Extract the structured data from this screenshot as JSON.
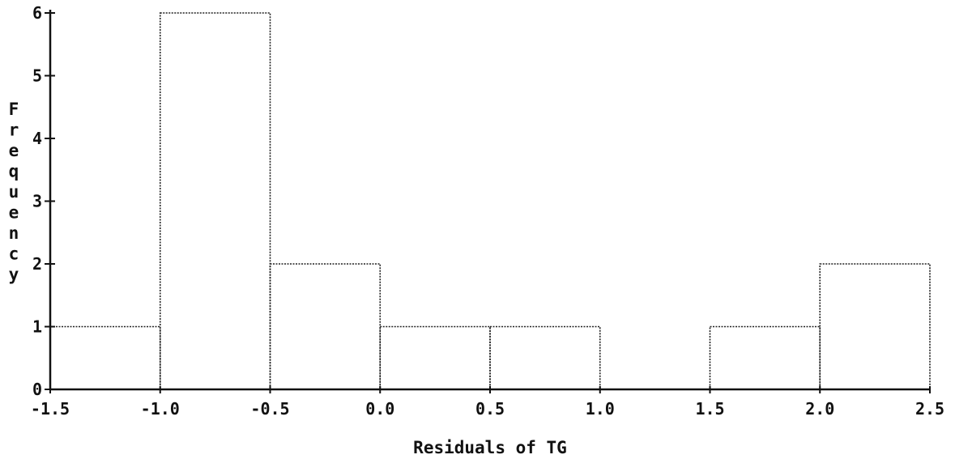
{
  "chart_data": {
    "type": "bar",
    "subtype": "histogram",
    "title": "",
    "xlabel": "Residuals of TG",
    "ylabel": "Frequency",
    "x_ticks": [
      -1.5,
      -1.0,
      -0.5,
      0.0,
      0.5,
      1.0,
      1.5,
      2.0,
      2.5
    ],
    "x_tick_labels": [
      "-1.5",
      "-1.0",
      "-0.5",
      "0.0",
      "0.5",
      "1.0",
      "1.5",
      "2.0",
      "2.5"
    ],
    "y_ticks": [
      0,
      1,
      2,
      3,
      4,
      5,
      6
    ],
    "y_tick_labels": [
      "0",
      "1",
      "2",
      "3",
      "4",
      "5",
      "6"
    ],
    "xlim": [
      -1.5,
      2.5
    ],
    "ylim": [
      0,
      6
    ],
    "grid": false,
    "bins": [
      {
        "x0": -1.5,
        "x1": -1.0,
        "count": 1
      },
      {
        "x0": -1.0,
        "x1": -0.5,
        "count": 6
      },
      {
        "x0": -0.5,
        "x1": 0.0,
        "count": 2
      },
      {
        "x0": 0.0,
        "x1": 0.5,
        "count": 1
      },
      {
        "x0": 0.5,
        "x1": 1.0,
        "count": 1
      },
      {
        "x0": 1.0,
        "x1": 1.5,
        "count": 0
      },
      {
        "x0": 1.5,
        "x1": 2.0,
        "count": 1
      },
      {
        "x0": 2.0,
        "x1": 2.5,
        "count": 2
      }
    ]
  }
}
